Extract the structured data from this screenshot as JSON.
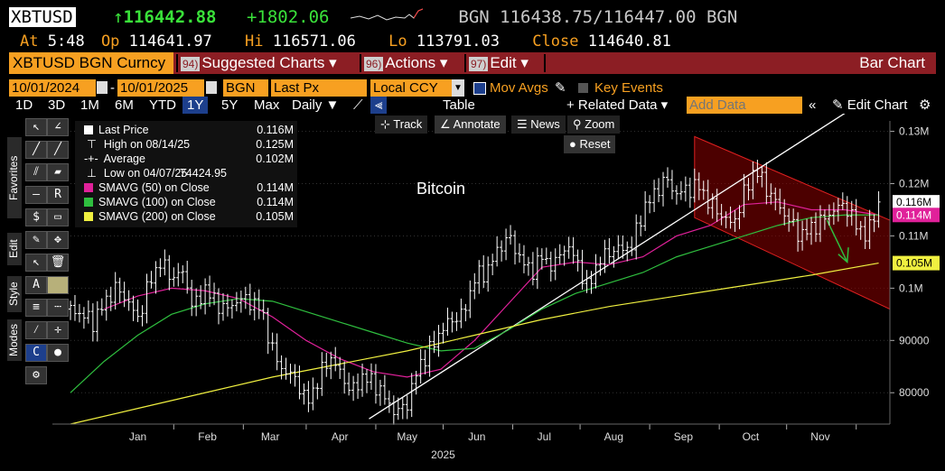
{
  "header": {
    "ticker": "XBTUSD",
    "last": "116442.88",
    "change": "+1802.06",
    "source": "BGN",
    "bid": "116438.75",
    "ask": "116447.00",
    "source2": "BGN",
    "at_label": "At",
    "at_value": "5:48",
    "op_label": "Op",
    "op_value": "114641.97",
    "hi_label": "Hi",
    "hi_value": "116571.06",
    "lo_label": "Lo",
    "lo_value": "113791.03",
    "close_label": "Close",
    "close_value": "114640.81"
  },
  "menu": {
    "security": "XBTUSD BGN Curncy",
    "items": [
      {
        "num": "94)",
        "label": "Suggested Charts ▾"
      },
      {
        "num": "96)",
        "label": "Actions ▾"
      },
      {
        "num": "97)",
        "label": "Edit ▾"
      }
    ],
    "right_label": "Bar Chart"
  },
  "controls": {
    "start_date": "10/01/2024",
    "end_date": "10/01/2025",
    "source": "BGN",
    "field": "Last Px",
    "currency": "Local CCY",
    "mov_avgs": "Mov Avgs",
    "key_events": "Key Events"
  },
  "toolbar": {
    "periods": [
      "1D",
      "3D",
      "1M",
      "6M",
      "YTD",
      "1Y",
      "5Y",
      "Max"
    ],
    "selected_period": "1Y",
    "frequency": "Daily ▼",
    "table": "Table",
    "related_data": "+ Related Data ▾",
    "add_data_placeholder": "Add Data",
    "edit_chart": "Edit Chart"
  },
  "chart_tools": {
    "track": "Track",
    "annotate": "Annotate",
    "news": "News",
    "zoom": "Zoom",
    "reset": "Reset"
  },
  "side_tabs": [
    "Favorites",
    "Edit",
    "Style",
    "Modes"
  ],
  "legend": [
    {
      "label": "Last Price",
      "value": "0.116M",
      "color": "#ffffff"
    },
    {
      "label": "High on 08/14/25",
      "value": "0.125M",
      "color": null
    },
    {
      "label": "Average",
      "value": "0.102M",
      "color": null
    },
    {
      "label": "Low on 04/07/25",
      "value": "74424.95",
      "color": null
    },
    {
      "label": "SMAVG (50)  on Close",
      "value": "0.114M",
      "color": "#e0219a"
    },
    {
      "label": "SMAVG (100)  on Close",
      "value": "0.114M",
      "color": "#2fbf3f"
    },
    {
      "label": "SMAVG (200)  on Close",
      "value": "0.105M",
      "color": "#f0f040"
    }
  ],
  "chart_data": {
    "type": "line",
    "title": "Bitcoin",
    "ylim": [
      74000,
      132000
    ],
    "x_labels": [
      "Jan",
      "Feb",
      "Mar",
      "Apr",
      "May",
      "Jun",
      "Jul",
      "Aug",
      "Sep",
      "Oct",
      "Nov"
    ],
    "year_label": "2025",
    "y_ticks": [
      {
        "v": 80000,
        "label": "80000"
      },
      {
        "v": 90000,
        "label": "90000"
      },
      {
        "v": 100000,
        "label": "0.1M"
      },
      {
        "v": 110000,
        "label": "0.11M"
      },
      {
        "v": 120000,
        "label": "0.12M"
      },
      {
        "v": 130000,
        "label": "0.13M"
      }
    ],
    "price_tags": [
      {
        "v": 116442,
        "label": "0.116M",
        "bg": "#ffffff",
        "fg": "#000000"
      },
      {
        "v": 114000,
        "label": "0.114M",
        "bg": "#e0219a",
        "fg": "#ffffff"
      },
      {
        "v": 104800,
        "label": "0.105M",
        "bg": "#f0f040",
        "fg": "#000000"
      }
    ],
    "series": [
      {
        "name": "Last Price",
        "color": "#ffffff",
        "x": [
          0,
          5,
          10,
          15,
          20,
          25,
          30,
          35,
          40,
          45,
          50,
          55,
          60,
          65,
          70,
          75,
          80,
          85,
          90,
          95,
          100,
          105,
          110,
          115,
          120,
          125,
          130,
          135,
          140,
          145,
          150,
          155,
          160,
          165,
          170,
          175,
          180,
          185,
          190,
          195,
          200,
          205,
          210,
          215,
          220,
          225,
          230,
          235,
          240,
          245,
          250,
          255,
          260,
          265,
          270,
          275,
          280,
          285,
          290,
          295,
          300,
          305,
          310,
          315,
          320,
          325,
          330,
          335,
          340,
          345,
          350,
          355,
          360
        ],
        "values": [
          96000,
          95000,
          93500,
          97000,
          100000,
          98000,
          94000,
          101000,
          105000,
          102000,
          103000,
          96000,
          100000,
          97000,
          96000,
          98000,
          97500,
          96000,
          88000,
          84000,
          83000,
          78000,
          82000,
          87000,
          84000,
          80000,
          83000,
          82000,
          79000,
          76000,
          78000,
          85000,
          88000,
          92000,
          94000,
          95000,
          102000,
          103000,
          107000,
          110000,
          106000,
          103000,
          106000,
          104000,
          108000,
          106000,
          100000,
          105000,
          107000,
          107500,
          108000,
          115000,
          118000,
          121000,
          118000,
          119000,
          119500,
          116000,
          114000,
          112000,
          118000,
          123000,
          119000,
          116000,
          113000,
          110000,
          111500,
          113000,
          115000,
          116000,
          112000,
          110000,
          116442
        ]
      },
      {
        "name": "SMAVG (50)",
        "color": "#e0219a",
        "x": [
          15,
          30,
          45,
          60,
          75,
          90,
          105,
          120,
          135,
          150,
          165,
          180,
          195,
          210,
          225,
          240,
          255,
          270,
          285,
          300,
          315,
          330,
          345,
          360
        ],
        "values": [
          96000,
          98500,
          100000,
          99500,
          98000,
          94500,
          90000,
          86500,
          84000,
          83000,
          84500,
          90000,
          97000,
          104000,
          105000,
          104500,
          106000,
          110000,
          112000,
          116000,
          116500,
          115000,
          115000,
          114000
        ]
      },
      {
        "name": "SMAVG (100)",
        "color": "#2fbf3f",
        "x": [
          0,
          15,
          30,
          45,
          60,
          75,
          90,
          105,
          120,
          135,
          150,
          165,
          180,
          195,
          210,
          225,
          240,
          255,
          270,
          285,
          300,
          315,
          330,
          345,
          360
        ],
        "values": [
          80000,
          86000,
          91000,
          95000,
          97000,
          98000,
          97500,
          95500,
          93500,
          91500,
          89500,
          88000,
          88500,
          92000,
          96000,
          99000,
          101000,
          103000,
          106000,
          108000,
          110000,
          112000,
          113500,
          114000,
          114000
        ]
      },
      {
        "name": "SMAVG (200)",
        "color": "#f0f040",
        "x": [
          0,
          30,
          60,
          90,
          120,
          150,
          180,
          210,
          240,
          270,
          300,
          330,
          360
        ],
        "values": [
          74000,
          77000,
          80000,
          83000,
          85500,
          88000,
          91000,
          94000,
          96500,
          98500,
          100500,
          102500,
          104800
        ]
      }
    ],
    "annotations": {
      "channel_color": "#8b0000",
      "trend_line_color": "#ffffff",
      "arrow_color": "#2fbf3f"
    }
  }
}
